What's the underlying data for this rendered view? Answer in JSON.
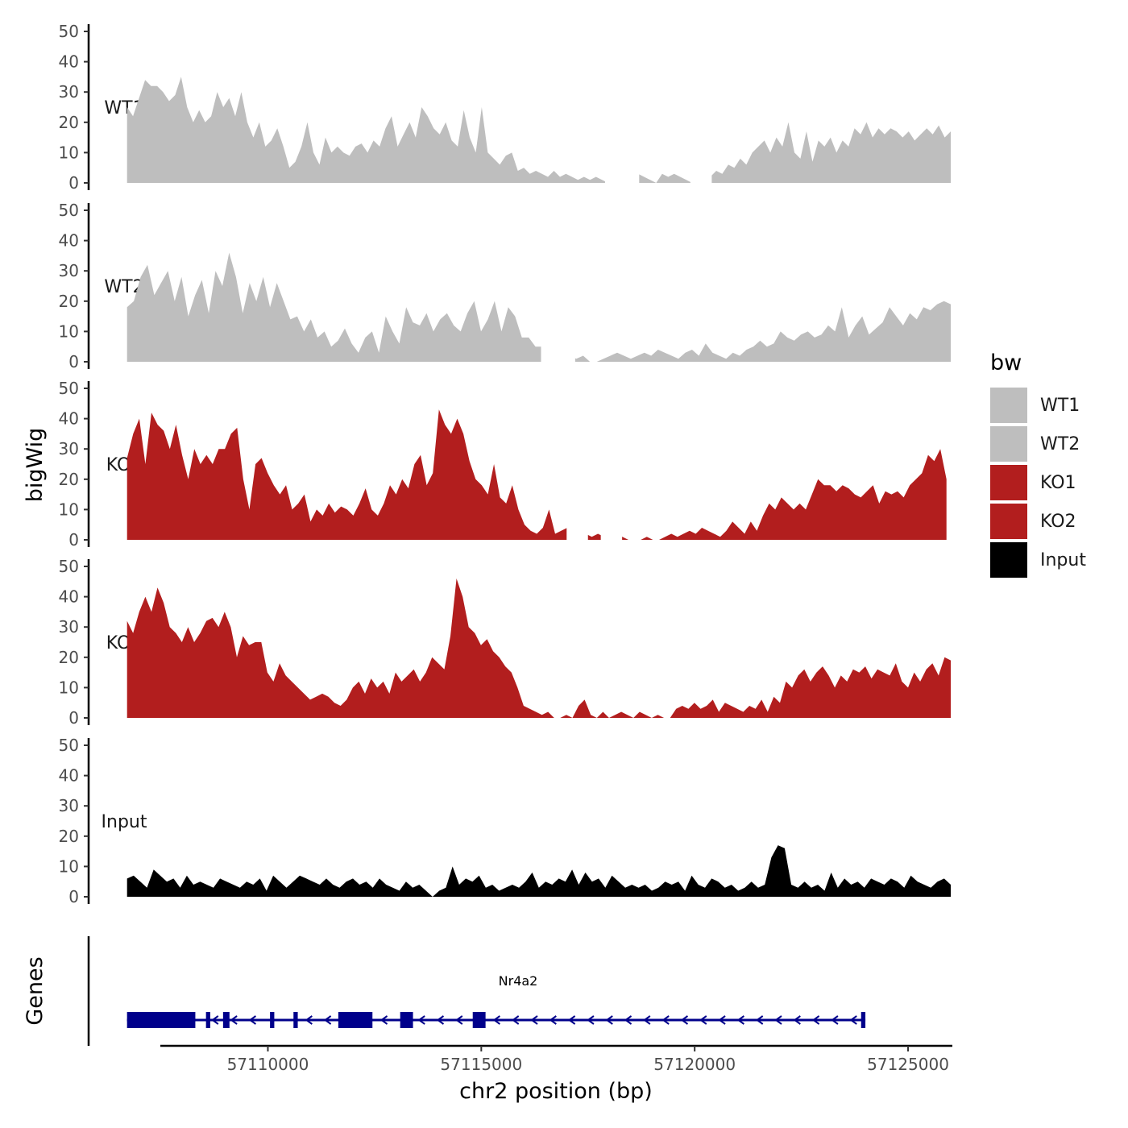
{
  "colors": {
    "wt": "#bebebe",
    "ko": "#b21e1e",
    "input": "#000000",
    "gene": "#00008b"
  },
  "chart_data": {
    "type": "area",
    "ylabel": "bigWig",
    "xlabel": "chr2 position (bp)",
    "genes_label": "Genes",
    "ylim": [
      0,
      50
    ],
    "yticks": [
      0,
      10,
      20,
      30,
      40,
      50
    ],
    "xlim": [
      57105800,
      57126000
    ],
    "xticks": [
      57110000,
      57115000,
      57120000,
      57125000
    ],
    "xtick_labels": [
      "57110000",
      "57115000",
      "57120000",
      "57125000"
    ],
    "series": [
      {
        "name": "WT1",
        "label": "WT1",
        "color": "#bebebe",
        "x_start": 57106700,
        "x_end": 57126000,
        "values": [
          25,
          22,
          28,
          34,
          32,
          32,
          30,
          27,
          29,
          35,
          25,
          20,
          24,
          20,
          22,
          30,
          25,
          28,
          22,
          30,
          20,
          15,
          20,
          12,
          14,
          18,
          12,
          5,
          7,
          12,
          20,
          10,
          6,
          15,
          10,
          12,
          10,
          9,
          12,
          13,
          10,
          14,
          12,
          18,
          22,
          12,
          16,
          20,
          15,
          25,
          22,
          18,
          16,
          20,
          14,
          12,
          24,
          15,
          10,
          25,
          10,
          8,
          6,
          9,
          10,
          4,
          5,
          3,
          4,
          3,
          2,
          4,
          2,
          3,
          2,
          1,
          2,
          1,
          2,
          1,
          0,
          1,
          3,
          0,
          1,
          3,
          2,
          1,
          0,
          3,
          2,
          3,
          2,
          1,
          0,
          0,
          1,
          2,
          4,
          3,
          6,
          5,
          8,
          6,
          10,
          12,
          14,
          10,
          15,
          12,
          20,
          10,
          8,
          17,
          7,
          14,
          12,
          15,
          10,
          14,
          12,
          18,
          16,
          20,
          15,
          18,
          16,
          18,
          17,
          15,
          17,
          14,
          16,
          18,
          16,
          19,
          15,
          17
        ],
        "gaps": [
          [
            57117900,
            57118700
          ],
          [
            57119900,
            57120400
          ]
        ]
      },
      {
        "name": "WT2",
        "label": "WT2",
        "color": "#bebebe",
        "x_start": 57106700,
        "x_end": 57126000,
        "values": [
          18,
          20,
          28,
          32,
          22,
          26,
          30,
          20,
          28,
          15,
          22,
          27,
          16,
          30,
          25,
          36,
          28,
          16,
          26,
          20,
          28,
          18,
          26,
          20,
          14,
          15,
          10,
          14,
          8,
          10,
          5,
          7,
          11,
          6,
          3,
          8,
          10,
          3,
          15,
          10,
          6,
          18,
          13,
          12,
          16,
          10,
          14,
          16,
          12,
          10,
          16,
          20,
          10,
          14,
          20,
          10,
          18,
          15,
          8,
          8,
          5,
          5,
          3,
          3,
          1,
          2,
          1,
          2,
          0,
          0,
          1,
          2,
          3,
          2,
          1,
          2,
          3,
          2,
          4,
          3,
          2,
          1,
          3,
          4,
          2,
          6,
          3,
          2,
          1,
          3,
          2,
          4,
          5,
          7,
          5,
          6,
          10,
          8,
          7,
          9,
          10,
          8,
          9,
          12,
          10,
          18,
          8,
          12,
          15,
          9,
          11,
          13,
          18,
          15,
          12,
          16,
          14,
          18,
          17,
          19,
          20,
          19
        ],
        "gaps": [
          [
            57116400,
            57117200
          ]
        ]
      },
      {
        "name": "KO1",
        "label": "KO1",
        "color": "#b21e1e",
        "x_start": 57106700,
        "x_end": 57125900,
        "values": [
          27,
          35,
          40,
          25,
          42,
          38,
          36,
          30,
          38,
          28,
          20,
          30,
          25,
          28,
          25,
          30,
          30,
          35,
          37,
          20,
          10,
          25,
          27,
          22,
          18,
          15,
          18,
          10,
          12,
          15,
          6,
          10,
          8,
          12,
          9,
          11,
          10,
          8,
          12,
          17,
          10,
          8,
          12,
          18,
          15,
          20,
          17,
          25,
          28,
          18,
          22,
          43,
          38,
          35,
          40,
          35,
          26,
          20,
          18,
          15,
          25,
          14,
          12,
          18,
          10,
          5,
          3,
          2,
          4,
          10,
          2,
          3,
          4,
          2,
          1,
          2,
          1,
          2,
          1,
          4,
          2,
          1,
          0,
          0,
          0,
          1,
          0,
          0,
          1,
          2,
          1,
          2,
          3,
          2,
          4,
          3,
          2,
          1,
          3,
          6,
          4,
          2,
          6,
          3,
          8,
          12,
          10,
          14,
          12,
          10,
          12,
          10,
          15,
          20,
          18,
          18,
          16,
          18,
          17,
          15,
          14,
          16,
          18,
          12,
          16,
          15,
          16,
          14,
          18,
          20,
          22,
          28,
          26,
          30,
          20
        ],
        "gaps": [
          [
            57117000,
            57117500
          ],
          [
            57117800,
            57118300
          ]
        ]
      },
      {
        "name": "KO2",
        "label": "KO2",
        "color": "#b21e1e",
        "x_start": 57106700,
        "x_end": 57126000,
        "values": [
          32,
          28,
          35,
          40,
          35,
          43,
          38,
          30,
          28,
          25,
          30,
          25,
          28,
          32,
          33,
          30,
          35,
          30,
          20,
          27,
          24,
          25,
          25,
          15,
          12,
          18,
          14,
          12,
          10,
          8,
          6,
          7,
          8,
          7,
          5,
          4,
          6,
          10,
          12,
          8,
          13,
          10,
          12,
          8,
          15,
          12,
          14,
          16,
          12,
          15,
          20,
          18,
          16,
          27,
          46,
          40,
          30,
          28,
          24,
          26,
          22,
          20,
          17,
          15,
          10,
          4,
          3,
          2,
          1,
          2,
          0,
          0,
          1,
          0,
          4,
          6,
          1,
          0,
          2,
          0,
          1,
          2,
          1,
          0,
          2,
          1,
          0,
          1,
          0,
          0,
          3,
          4,
          3,
          5,
          3,
          4,
          6,
          2,
          5,
          4,
          3,
          2,
          4,
          3,
          6,
          2,
          7,
          5,
          12,
          10,
          14,
          16,
          12,
          15,
          17,
          14,
          10,
          14,
          12,
          16,
          15,
          17,
          13,
          16,
          15,
          14,
          18,
          12,
          10,
          15,
          12,
          16,
          18,
          14,
          20,
          19
        ],
        "gaps": []
      },
      {
        "name": "Input",
        "label": "Input",
        "color": "#000000",
        "x_start": 57106700,
        "x_end": 57126000,
        "values": [
          6,
          7,
          5,
          3,
          9,
          7,
          5,
          6,
          3,
          7,
          4,
          5,
          4,
          3,
          6,
          5,
          4,
          3,
          5,
          4,
          6,
          2,
          7,
          5,
          3,
          5,
          7,
          6,
          5,
          4,
          6,
          4,
          3,
          5,
          6,
          4,
          5,
          3,
          6,
          4,
          3,
          2,
          5,
          3,
          4,
          2,
          0,
          2,
          3,
          10,
          4,
          6,
          5,
          7,
          3,
          4,
          2,
          3,
          4,
          3,
          5,
          8,
          3,
          5,
          4,
          6,
          5,
          9,
          4,
          8,
          5,
          6,
          3,
          7,
          5,
          3,
          4,
          3,
          4,
          2,
          3,
          5,
          4,
          5,
          2,
          7,
          4,
          3,
          6,
          5,
          3,
          4,
          2,
          3,
          5,
          3,
          4,
          13,
          17,
          16,
          4,
          3,
          5,
          3,
          4,
          2,
          8,
          3,
          6,
          4,
          5,
          3,
          6,
          5,
          4,
          6,
          5,
          3,
          7,
          5,
          4,
          3,
          5,
          6,
          4
        ]
      }
    ],
    "legend": {
      "title": "bw",
      "position": "right",
      "entries": [
        {
          "label": "WT1",
          "color": "#bebebe"
        },
        {
          "label": "WT2",
          "color": "#bebebe"
        },
        {
          "label": "KO1",
          "color": "#b21e1e"
        },
        {
          "label": "KO2",
          "color": "#b21e1e"
        },
        {
          "label": "Input",
          "color": "#000000"
        }
      ]
    },
    "gene_track": {
      "gene_name": "Nr4a2",
      "strand": "-",
      "start": 57106700,
      "end": 57124000,
      "exons": [
        [
          57106700,
          57108300
        ],
        [
          57108550,
          57108650
        ],
        [
          57108950,
          57109100
        ],
        [
          57110050,
          57110150
        ],
        [
          57110600,
          57110700
        ],
        [
          57111650,
          57112450
        ],
        [
          57113100,
          57113400
        ],
        [
          57114800,
          57115100
        ],
        [
          57123900,
          57124000
        ]
      ]
    }
  }
}
